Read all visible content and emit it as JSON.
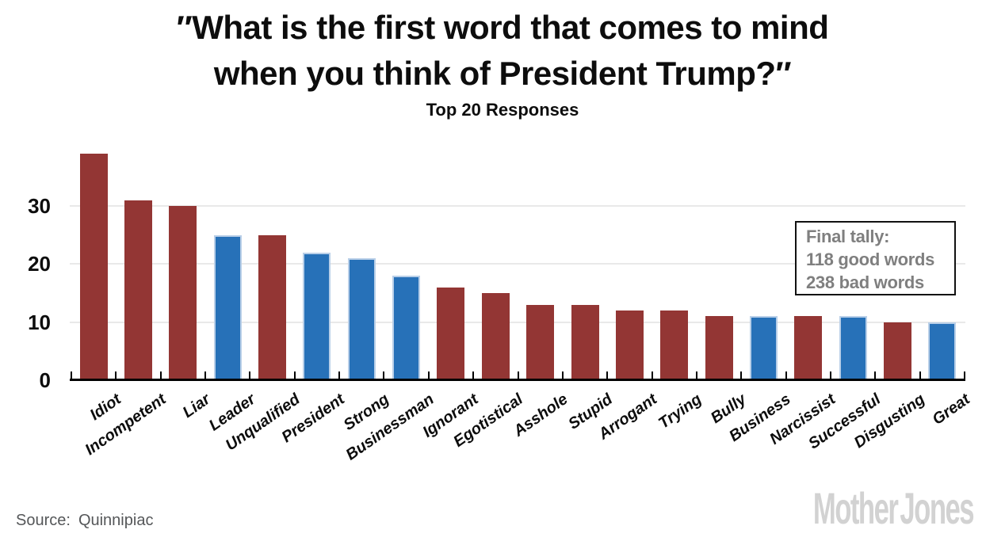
{
  "page": {
    "title_line1": "″What is the first word that comes to mind",
    "title_line2": "when you think of President Trump?″",
    "subtitle": "Top 20 Responses",
    "source_label": "Source:",
    "source_value": "Quinnipiac",
    "logo_part1": "Mother",
    "logo_part2": "Jones"
  },
  "annotation": {
    "line1": "Final tally:",
    "line2": "118 good words",
    "line3": "238 bad words"
  },
  "chart_data": {
    "type": "bar",
    "title": "″What is the first word that comes to mind when you think of President Trump?″",
    "subtitle": "Top 20 Responses",
    "categories": [
      "Idiot",
      "Incompetent",
      "Liar",
      "Leader",
      "Unqualified",
      "President",
      "Strong",
      "Businessman",
      "Ignorant",
      "Egotistical",
      "Asshole",
      "Stupid",
      "Arrogant",
      "Trying",
      "Bully",
      "Business",
      "Narcissist",
      "Successful",
      "Disgusting",
      "Great"
    ],
    "values": [
      39,
      31,
      30,
      25,
      25,
      22,
      21,
      18,
      16,
      15,
      13,
      13,
      12,
      12,
      11,
      11,
      11,
      11,
      10,
      10
    ],
    "sentiments": [
      "bad",
      "bad",
      "bad",
      "good",
      "bad",
      "good",
      "good",
      "good",
      "bad",
      "bad",
      "bad",
      "bad",
      "bad",
      "bad",
      "bad",
      "good",
      "bad",
      "good",
      "bad",
      "good"
    ],
    "colors": {
      "bad_bar": "#933634",
      "good_bar": "#2771b8",
      "good_bar_edge": "#b9cfe8",
      "gridline": "#e9e9e9",
      "axis": "#000000",
      "annotation_text": "#7f7f7f",
      "logo": "#d2d2d2"
    },
    "xlabel": "",
    "ylabel": "",
    "yticks": [
      0,
      10,
      20,
      30
    ],
    "ylim": [
      0,
      40
    ],
    "grid": "horizontal",
    "legend": "none",
    "annotation": "Final tally: 118 good words / 238 bad words",
    "source": "Source: Quinnipiac"
  }
}
